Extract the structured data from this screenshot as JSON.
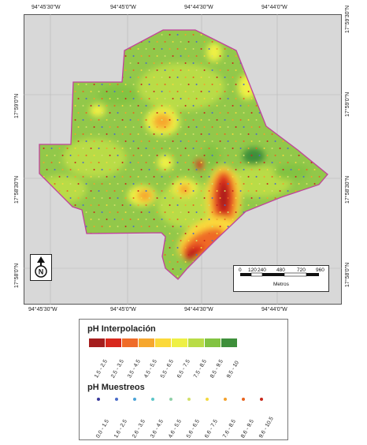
{
  "coords": {
    "top": [
      "94°45'30\"W",
      "94°45'0\"W",
      "94°44'30\"W",
      "94°44'0\"W"
    ],
    "bottom": [
      "94°45'30\"W",
      "94°45'0\"W",
      "94°44'30\"W",
      "94°44'0\"W"
    ],
    "left": [
      "17°59'0\"N",
      "17°58'30\"N",
      "17°58'0\"N"
    ],
    "right": [
      "17°59'30\"N",
      "17°59'0\"N",
      "17°58'30\"N",
      "17°58'0\"N"
    ]
  },
  "scale": {
    "ticks": [
      "0",
      "120",
      "240",
      "480",
      "720",
      "960"
    ],
    "unit": "Metros"
  },
  "north_symbol": "N",
  "legend": {
    "interp_title": "pH Interpolación",
    "interp_classes": [
      {
        "label": "1.5 - 2.5",
        "color": "#a51d1d"
      },
      {
        "label": "2.5 - 3.5",
        "color": "#d8281d"
      },
      {
        "label": "3.5 - 4.5",
        "color": "#ef6b28"
      },
      {
        "label": "4.5 - 5.5",
        "color": "#f6a72e"
      },
      {
        "label": "5.5 - 6.5",
        "color": "#fbd93a"
      },
      {
        "label": "6.5 - 7.5",
        "color": "#eef045"
      },
      {
        "label": "7.5 - 8.5",
        "color": "#b9dc47"
      },
      {
        "label": "8.5 - 9.5",
        "color": "#82c342"
      },
      {
        "label": "9.5 - 10",
        "color": "#3e8f3a"
      }
    ],
    "sample_title": "pH Muestreos",
    "sample_classes": [
      {
        "label": "0.0 - 1.5",
        "color": "#3a3a9a"
      },
      {
        "label": "1.6 - 2.5",
        "color": "#4a6cc8"
      },
      {
        "label": "2.6 - 3.5",
        "color": "#4ba3d8"
      },
      {
        "label": "3.6 - 4.5",
        "color": "#5bc5c8"
      },
      {
        "label": "4.6 - 5.5",
        "color": "#8fd0a8"
      },
      {
        "label": "5.6 - 6.5",
        "color": "#d2e06a"
      },
      {
        "label": "6.6 - 7.5",
        "color": "#f3d93e"
      },
      {
        "label": "7.6 - 8.5",
        "color": "#f3a12c"
      },
      {
        "label": "8.6 - 9.5",
        "color": "#e8641f"
      },
      {
        "label": "9.6 - 10.5",
        "color": "#c8281c"
      }
    ]
  },
  "colors": {
    "boundary": "#c2409c",
    "base_fill": "#92c84a",
    "map_bg": "#d8d8d8"
  }
}
